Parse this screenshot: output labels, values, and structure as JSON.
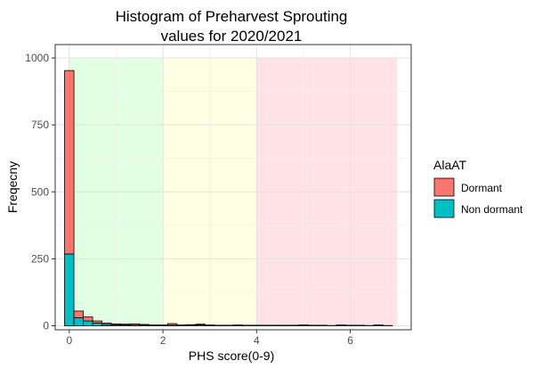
{
  "chart_data": {
    "type": "bar",
    "title_line1": "Histogram of Preharvest Sprouting",
    "title_line2": "values for 2020/2021",
    "xlabel": "PHS score(0-9)",
    "ylabel": "Freqecny",
    "xlim": [
      -0.3,
      7.3
    ],
    "ylim": [
      -15,
      1050
    ],
    "x_ticks": [
      0,
      2,
      4,
      6
    ],
    "x_tick_labels": [
      "0",
      "2",
      "4",
      "6"
    ],
    "y_ticks": [
      0,
      250,
      500,
      750,
      1000
    ],
    "y_tick_labels": [
      "0",
      "250",
      "500",
      "750",
      "1000"
    ],
    "grid": true,
    "bin_width": 0.2,
    "regions": [
      {
        "xmin": 0,
        "xmax": 2,
        "ymax": 1000,
        "color": "#e3ffe3"
      },
      {
        "xmin": 2,
        "xmax": 4,
        "ymax": 1000,
        "color": "#ffffe3"
      },
      {
        "xmin": 4,
        "xmax": 7,
        "ymax": 1000,
        "color": "#ffe3e6"
      }
    ],
    "legend": {
      "title": "AlaAT",
      "placement": "right",
      "entries": [
        {
          "label": "Dormant",
          "color": "#F8766D"
        },
        {
          "label": "Non dormant",
          "color": "#00BFC4"
        }
      ]
    },
    "series": [
      {
        "name": "Non dormant",
        "color": "#00BFC4",
        "x": [
          0,
          0.2,
          0.4,
          0.6,
          0.8,
          1.0,
          1.2,
          1.4,
          1.6,
          1.8,
          2.0,
          2.2,
          2.4,
          2.6,
          2.8,
          3.0,
          3.2,
          3.4,
          3.6,
          3.8,
          4.0,
          4.2,
          4.4,
          4.6,
          4.8,
          5.0,
          5.2,
          5.4,
          5.6,
          5.8,
          6.0,
          6.2,
          6.4,
          6.6,
          6.8
        ],
        "values": [
          268,
          30,
          18,
          10,
          5,
          3,
          3,
          2,
          2,
          1,
          1,
          2,
          1,
          2,
          3,
          1,
          0,
          0,
          1,
          0,
          0,
          0,
          0,
          0,
          0,
          0,
          0,
          0,
          0,
          0,
          0,
          0,
          0,
          0,
          0
        ]
      },
      {
        "name": "Dormant",
        "color": "#F8766D",
        "x": [
          0,
          0.2,
          0.4,
          0.6,
          0.8,
          1.0,
          1.2,
          1.4,
          1.6,
          1.8,
          2.0,
          2.2,
          2.4,
          2.6,
          2.8,
          3.0,
          3.2,
          3.4,
          3.6,
          3.8,
          4.0,
          4.2,
          4.4,
          4.6,
          4.8,
          5.0,
          5.2,
          5.4,
          5.6,
          5.8,
          6.0,
          6.2,
          6.4,
          6.6,
          6.8
        ],
        "values": [
          685,
          25,
          15,
          8,
          5,
          4,
          3,
          5,
          3,
          2,
          2,
          6,
          2,
          2,
          3,
          2,
          2,
          2,
          2,
          2,
          2,
          2,
          2,
          2,
          2,
          3,
          2,
          2,
          1,
          3,
          2,
          2,
          1,
          3,
          1
        ]
      }
    ]
  }
}
